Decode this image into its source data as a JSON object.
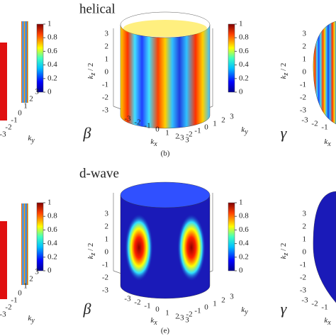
{
  "panels": [
    {
      "title": "helical",
      "caption": "(b)",
      "left_label": "β",
      "right_label": "γ"
    },
    {
      "title": "d-wave",
      "caption": "(e)",
      "left_label": "β",
      "right_label": "γ"
    }
  ],
  "colorbar_ticks": [
    1,
    0.8,
    0.6,
    0.4,
    0.2,
    0
  ],
  "kz_ticks": [
    3,
    2,
    1,
    0,
    -1,
    -2,
    -3
  ],
  "kx_ticks": [
    -3,
    -2,
    -1,
    0,
    1,
    2,
    3
  ],
  "ky_ticks": [
    -3,
    -2,
    -1,
    0,
    1,
    2,
    3
  ],
  "kz_label": {
    "base": "k",
    "sub": "z",
    "suffix": " / 2"
  },
  "kx_label": {
    "base": "k",
    "sub": "x"
  },
  "ky_label": {
    "base": "k",
    "sub": "y"
  }
}
